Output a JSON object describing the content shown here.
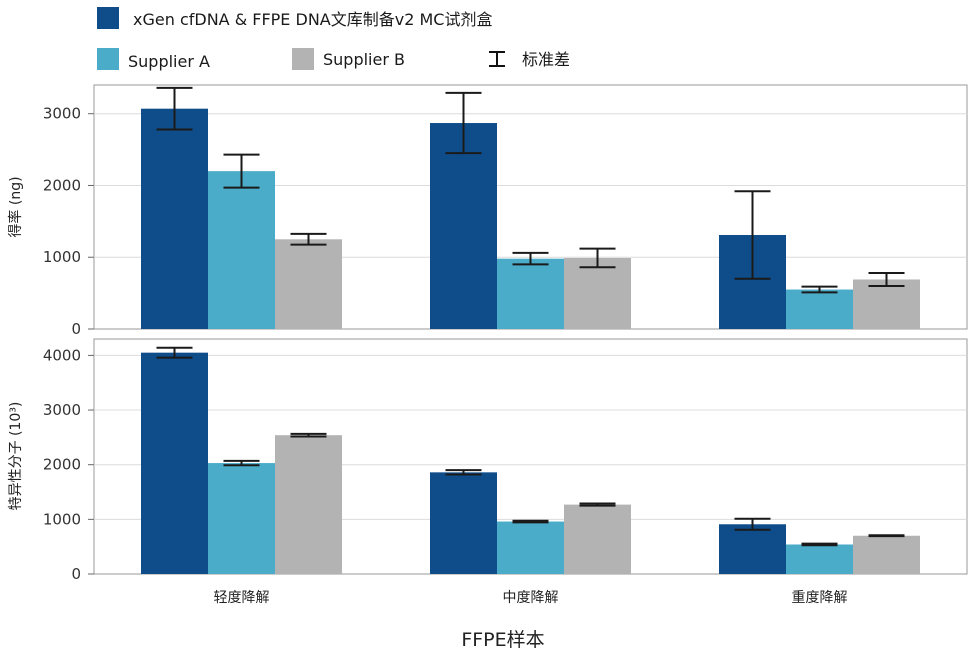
{
  "legend": {
    "items": [
      {
        "label": "xGen cfDNA & FFPE DNA文库制备v2 MC试剂盒",
        "color": "#0f4d8a"
      },
      {
        "label": "Supplier A",
        "color": "#4bacc9"
      },
      {
        "label": "Supplier B",
        "color": "#b3b3b3"
      }
    ],
    "error_label": "标准差"
  },
  "x_title": "FFPE样本",
  "chart_data": [
    {
      "type": "bar",
      "ylabel": "得率 (ng)",
      "categories": [
        "轻度降解",
        "中度降解",
        "重度降解"
      ],
      "ylim": [
        0,
        3400
      ],
      "yticks": [
        0,
        1000,
        2000,
        3000
      ],
      "grid": true,
      "series": [
        {
          "name": "xGen cfDNA & FFPE DNA文库制备v2 MC试剂盒",
          "values": [
            3070,
            2870,
            1310
          ],
          "errors": [
            290,
            420,
            610
          ]
        },
        {
          "name": "Supplier A",
          "values": [
            2200,
            980,
            550
          ],
          "errors": [
            230,
            80,
            40
          ]
        },
        {
          "name": "Supplier B",
          "values": [
            1250,
            990,
            690
          ],
          "errors": [
            75,
            130,
            90
          ]
        }
      ]
    },
    {
      "type": "bar",
      "ylabel": "特异性分子 (10³)",
      "categories": [
        "轻度降解",
        "中度降解",
        "重度降解"
      ],
      "ylim": [
        0,
        4300
      ],
      "yticks": [
        0,
        1000,
        2000,
        3000,
        4000
      ],
      "grid": true,
      "series": [
        {
          "name": "xGen cfDNA & FFPE DNA文库制备v2 MC试剂盒",
          "values": [
            4050,
            1860,
            910
          ],
          "errors": [
            90,
            40,
            100
          ]
        },
        {
          "name": "Supplier A",
          "values": [
            2030,
            960,
            540
          ],
          "errors": [
            40,
            15,
            15
          ]
        },
        {
          "name": "Supplier B",
          "values": [
            2540,
            1270,
            700
          ],
          "errors": [
            25,
            20,
            8
          ]
        }
      ]
    }
  ]
}
